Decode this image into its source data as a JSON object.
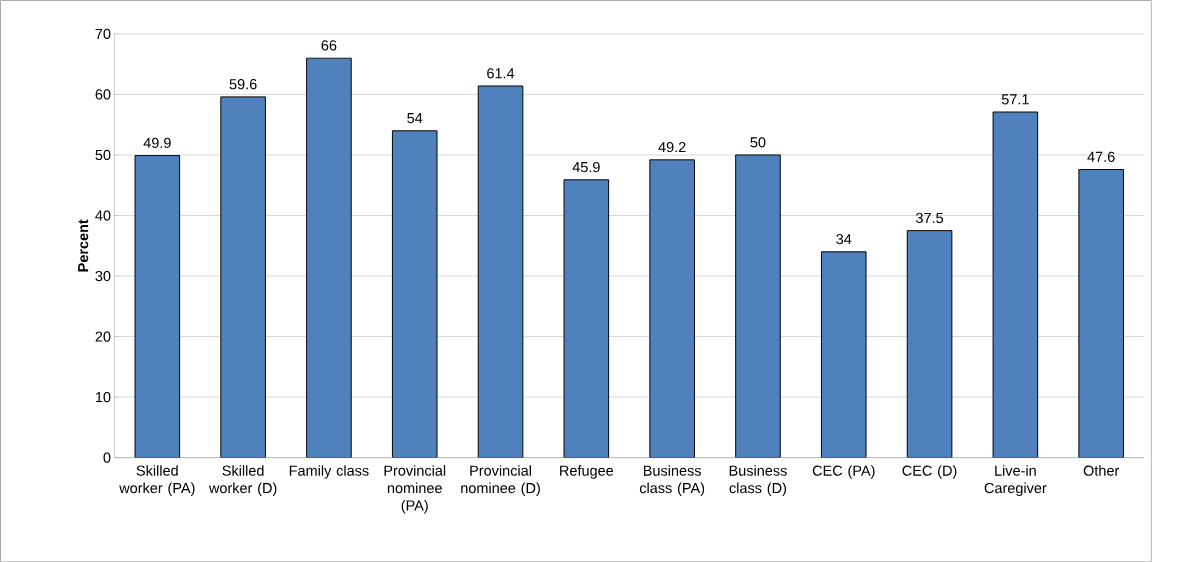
{
  "chart_data": {
    "type": "bar",
    "ylabel": "Percent",
    "categories": [
      "Skilled worker (PA)",
      "Skilled worker (D)",
      "Family class",
      "Provincial nominee (PA)",
      "Provincial nominee (D)",
      "Refugee",
      "Business class (PA)",
      "Business class (D)",
      "CEC (PA)",
      "CEC (D)",
      "Live-in Caregiver",
      "Other"
    ],
    "values": [
      49.9,
      59.6,
      66,
      54,
      61.4,
      45.9,
      49.2,
      50,
      34,
      37.5,
      57.1,
      47.6
    ],
    "color": "#4f81bd",
    "ylim": [
      0,
      70
    ],
    "yticks": [
      0,
      10,
      20,
      30,
      40,
      50,
      60,
      70
    ],
    "grid": "y",
    "data_labels": true
  }
}
